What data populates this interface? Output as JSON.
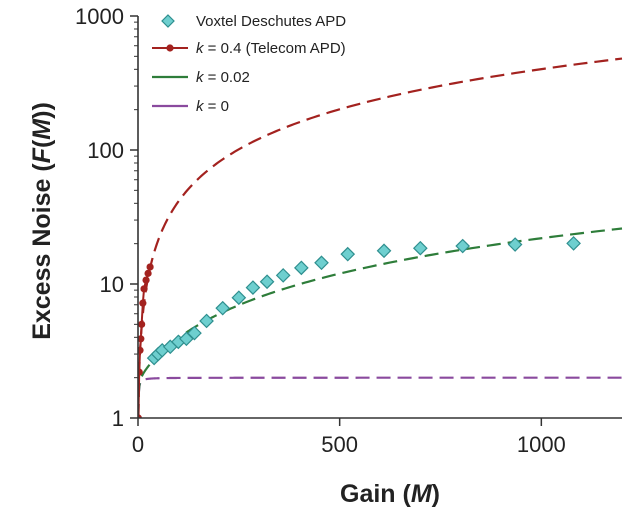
{
  "chart_data": {
    "type": "scatter",
    "xlabel": "Gain (M)",
    "xlabel_parts": [
      "Gain (",
      "M",
      ")"
    ],
    "ylabel": "Excess Noise (F(M))",
    "ylabel_parts": [
      "Excess Noise (",
      "F",
      "(",
      "M",
      "))"
    ],
    "xlim": [
      0,
      1200
    ],
    "ylim": [
      1,
      1000
    ],
    "yscale": "log",
    "xticks": [
      0,
      500,
      1000
    ],
    "xtick_labels": [
      "0",
      "500",
      "1000"
    ],
    "yticks": [
      1,
      10,
      100,
      1000
    ],
    "ytick_labels": [
      "1",
      "10",
      "100",
      "1000"
    ],
    "grid": false,
    "legend_position": "top-left",
    "series": [
      {
        "name": "Voxtel Deschutes APD",
        "kind": "markers",
        "marker": "diamond",
        "color": "#6ecfcf",
        "edge_color": "#2f8f8f",
        "x": [
          40,
          50,
          60,
          80,
          100,
          120,
          140,
          170,
          210,
          250,
          285,
          320,
          360,
          405,
          455,
          520,
          610,
          700,
          805,
          935,
          1080
        ],
        "y": [
          2.8,
          3.0,
          3.2,
          3.4,
          3.7,
          3.9,
          4.3,
          5.3,
          6.6,
          7.9,
          9.4,
          10.4,
          11.6,
          13.2,
          14.4,
          16.7,
          17.7,
          18.5,
          19.2,
          19.7,
          20.1
        ]
      },
      {
        "name": "k = 0.4 (Telecom APD)",
        "name_parts": [
          "k",
          " = 0.4 (Telecom APD)"
        ],
        "kind": "dashed-with-points",
        "color": "#a3221f",
        "x": [
          1,
          3,
          5,
          7,
          9,
          12,
          15,
          20,
          25,
          30
        ],
        "y": [
          1.0,
          2.2,
          3.2,
          3.9,
          5.0,
          7.2,
          9.2,
          10.7,
          12.0,
          13.4
        ]
      },
      {
        "name": "k = 0.02",
        "name_parts": [
          "k",
          " = 0.02"
        ],
        "kind": "dashed-line",
        "color": "#2e7d3a",
        "k": 0.02
      },
      {
        "name": "k = 0",
        "name_parts": [
          "k",
          " = 0"
        ],
        "kind": "dashed-line",
        "color": "#8a4a9e",
        "k": 0
      }
    ]
  }
}
